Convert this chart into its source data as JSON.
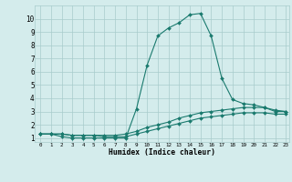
{
  "xlabel": "Humidex (Indice chaleur)",
  "background_color": "#d4ecec",
  "grid_color": "#a8cccc",
  "line_color": "#1a7a6e",
  "xlim": [
    -0.5,
    23.3
  ],
  "ylim": [
    0.7,
    11.0
  ],
  "yticks": [
    1,
    2,
    3,
    4,
    5,
    6,
    7,
    8,
    9,
    10
  ],
  "xtick_labels": [
    "0",
    "1",
    "2",
    "3",
    "4",
    "5",
    "6",
    "7",
    "8",
    "9",
    "10",
    "11",
    "12",
    "13",
    "14",
    "15",
    "16",
    "17",
    "18",
    "19",
    "20",
    "21",
    "22",
    "23"
  ],
  "xtick_vals": [
    0,
    1,
    2,
    3,
    4,
    5,
    6,
    7,
    8,
    9,
    10,
    11,
    12,
    13,
    14,
    15,
    16,
    17,
    18,
    19,
    20,
    21,
    22,
    23
  ],
  "series1_x": [
    0,
    1,
    2,
    3,
    4,
    5,
    6,
    7,
    8,
    9,
    10,
    11,
    12,
    13,
    14,
    15,
    16,
    17,
    18,
    19,
    20,
    21,
    22,
    23
  ],
  "series1_y": [
    1.3,
    1.3,
    1.1,
    1.0,
    1.0,
    1.0,
    1.0,
    1.0,
    1.0,
    3.2,
    6.5,
    8.7,
    9.3,
    9.7,
    10.3,
    10.4,
    8.7,
    5.5,
    3.9,
    3.6,
    3.5,
    3.3,
    3.0,
    3.0
  ],
  "series2_x": [
    0,
    1,
    2,
    3,
    4,
    5,
    6,
    7,
    8,
    9,
    10,
    11,
    12,
    13,
    14,
    15,
    16,
    17,
    18,
    19,
    20,
    21,
    22,
    23
  ],
  "series2_y": [
    1.3,
    1.3,
    1.3,
    1.2,
    1.2,
    1.2,
    1.2,
    1.2,
    1.3,
    1.5,
    1.8,
    2.0,
    2.2,
    2.5,
    2.7,
    2.9,
    3.0,
    3.1,
    3.2,
    3.3,
    3.3,
    3.3,
    3.1,
    3.0
  ],
  "series3_x": [
    0,
    1,
    2,
    3,
    4,
    5,
    6,
    7,
    8,
    9,
    10,
    11,
    12,
    13,
    14,
    15,
    16,
    17,
    18,
    19,
    20,
    21,
    22,
    23
  ],
  "series3_y": [
    1.3,
    1.3,
    1.3,
    1.2,
    1.2,
    1.2,
    1.1,
    1.1,
    1.1,
    1.3,
    1.5,
    1.7,
    1.9,
    2.1,
    2.3,
    2.5,
    2.6,
    2.7,
    2.8,
    2.9,
    2.9,
    2.9,
    2.8,
    2.8
  ]
}
